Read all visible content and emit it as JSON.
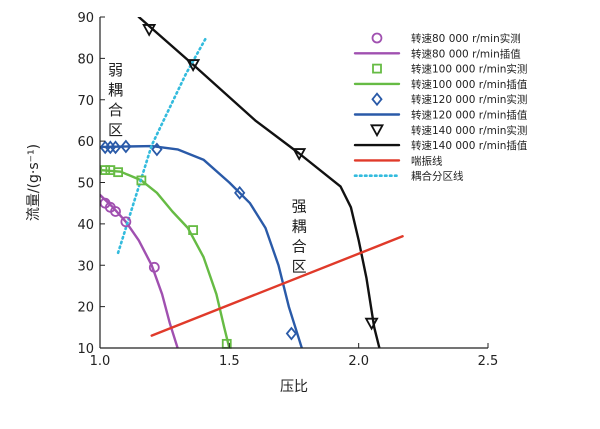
{
  "chart_data": {
    "type": "line",
    "xlabel": "压比",
    "ylabel": "流量/(g·s⁻¹)",
    "xlim": [
      1.0,
      2.5
    ],
    "ylim": [
      10,
      90
    ],
    "xticks": [
      1.0,
      1.5,
      2.0,
      2.5
    ],
    "yticks": [
      10,
      20,
      30,
      40,
      50,
      60,
      70,
      80,
      90
    ],
    "grid": false,
    "legend_position": "top-right",
    "zone_labels": [
      {
        "text": "弱耦合区",
        "x": 1.06,
        "y": 76
      },
      {
        "text": "强耦合区",
        "x": 1.77,
        "y": 43
      }
    ],
    "series": [
      {
        "name": "转速80 000 r/min实测",
        "kind": "measured",
        "marker": "circle",
        "color": "#a050b0",
        "points": [
          [
            1.02,
            45
          ],
          [
            1.04,
            44
          ],
          [
            1.06,
            43
          ],
          [
            1.1,
            40.5
          ],
          [
            1.21,
            29.5
          ]
        ]
      },
      {
        "name": "转速80 000 r/min插值",
        "kind": "fit",
        "color": "#a050b0",
        "points": [
          [
            1.0,
            47
          ],
          [
            1.05,
            44
          ],
          [
            1.1,
            40.5
          ],
          [
            1.15,
            36
          ],
          [
            1.2,
            30
          ],
          [
            1.24,
            23
          ],
          [
            1.27,
            16
          ],
          [
            1.3,
            10
          ]
        ]
      },
      {
        "name": "转速100 000 r/min实测",
        "kind": "measured",
        "marker": "square",
        "color": "#66bb44",
        "points": [
          [
            1.02,
            53
          ],
          [
            1.04,
            53
          ],
          [
            1.07,
            52.5
          ],
          [
            1.16,
            50.5
          ],
          [
            1.36,
            38.5
          ],
          [
            1.49,
            11
          ]
        ]
      },
      {
        "name": "转速100 000 r/min插值",
        "kind": "fit",
        "color": "#66bb44",
        "points": [
          [
            1.0,
            53
          ],
          [
            1.08,
            52.6
          ],
          [
            1.16,
            50.5
          ],
          [
            1.22,
            47.5
          ],
          [
            1.28,
            43
          ],
          [
            1.34,
            39
          ],
          [
            1.4,
            32
          ],
          [
            1.45,
            23
          ],
          [
            1.48,
            15
          ],
          [
            1.5,
            10
          ]
        ]
      },
      {
        "name": "转速120 000 r/min实测",
        "kind": "measured",
        "marker": "diamond",
        "color": "#2a5aa8",
        "points": [
          [
            1.02,
            58.5
          ],
          [
            1.04,
            58.5
          ],
          [
            1.06,
            58.5
          ],
          [
            1.1,
            58.7
          ],
          [
            1.22,
            58
          ],
          [
            1.54,
            47.5
          ],
          [
            1.74,
            13.5
          ]
        ]
      },
      {
        "name": "转速120 000 r/min插值",
        "kind": "fit",
        "color": "#2a5aa8",
        "points": [
          [
            1.01,
            58.6
          ],
          [
            1.2,
            58.8
          ],
          [
            1.3,
            58
          ],
          [
            1.4,
            55.5
          ],
          [
            1.5,
            50
          ],
          [
            1.58,
            45
          ],
          [
            1.64,
            39
          ],
          [
            1.69,
            30
          ],
          [
            1.73,
            20
          ],
          [
            1.77,
            12
          ],
          [
            1.78,
            10
          ]
        ]
      },
      {
        "name": "转速140 000 r/min实测",
        "kind": "measured",
        "marker": "triangle-down",
        "color": "#111111",
        "points": [
          [
            1.19,
            87
          ],
          [
            1.36,
            78.5
          ],
          [
            1.77,
            57
          ],
          [
            2.05,
            16
          ]
        ]
      },
      {
        "name": "转速140 000 r/min插值",
        "kind": "fit",
        "color": "#111111",
        "points": [
          [
            1.15,
            90
          ],
          [
            1.36,
            78.5
          ],
          [
            1.6,
            65
          ],
          [
            1.77,
            57
          ],
          [
            1.93,
            49
          ],
          [
            1.97,
            44
          ],
          [
            2.0,
            36
          ],
          [
            2.03,
            27
          ],
          [
            2.06,
            15
          ],
          [
            2.08,
            10
          ]
        ]
      },
      {
        "name": "喘振线",
        "kind": "line",
        "color": "#e03a2a",
        "points": [
          [
            1.2,
            13
          ],
          [
            2.17,
            37
          ]
        ]
      },
      {
        "name": "耦合分区线",
        "kind": "dotted",
        "color": "#33bbdd",
        "points": [
          [
            1.07,
            33
          ],
          [
            1.2,
            59
          ],
          [
            1.33,
            76
          ],
          [
            1.41,
            85
          ]
        ]
      }
    ]
  }
}
